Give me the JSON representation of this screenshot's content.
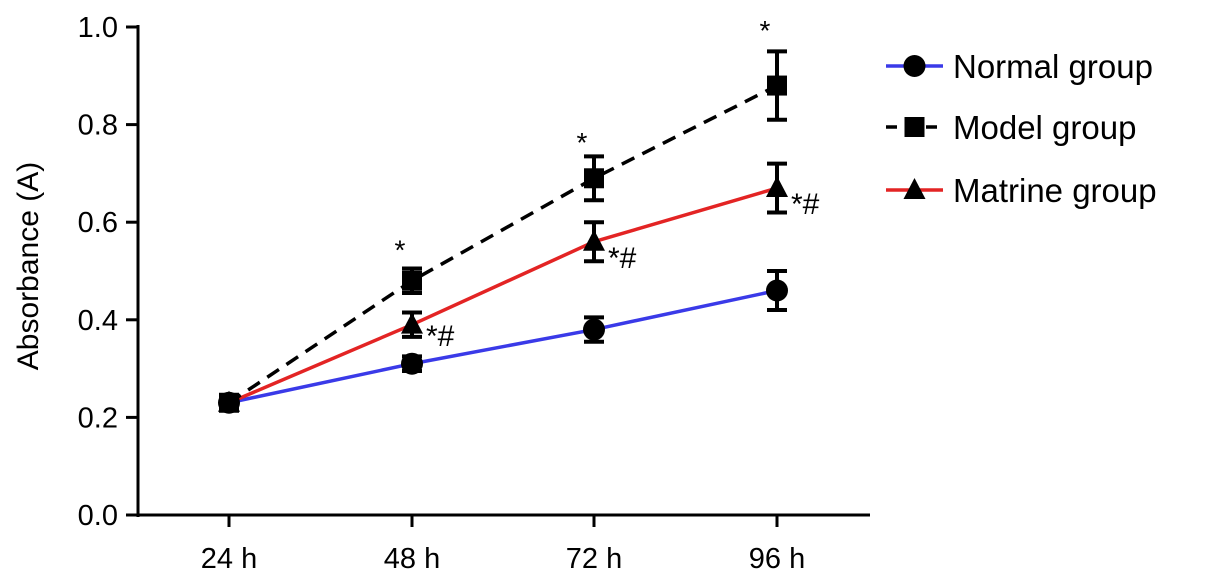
{
  "chart_data": {
    "type": "line",
    "title": "",
    "xlabel": "",
    "ylabel": "Absorbance (A)",
    "categories": [
      "24 h",
      "48 h",
      "72 h",
      "96 h"
    ],
    "ylim": [
      0,
      1.0
    ],
    "yticks": [
      0.0,
      0.2,
      0.4,
      0.6,
      0.8,
      1.0
    ],
    "ytick_labels": [
      "0.0",
      "0.2",
      "0.4",
      "0.6",
      "0.8",
      "1.0"
    ],
    "grid": false,
    "legend_position": "right",
    "series": [
      {
        "name": "Normal group",
        "marker": "circle",
        "line_style": "solid",
        "color": "#3a3ae8",
        "values": [
          0.23,
          0.31,
          0.38,
          0.46
        ],
        "errors": [
          0.015,
          0.015,
          0.025,
          0.04
        ]
      },
      {
        "name": "Model group",
        "marker": "square",
        "line_style": "dashed",
        "color": "#000000",
        "values": [
          0.23,
          0.48,
          0.69,
          0.88
        ],
        "errors": [
          0.015,
          0.025,
          0.045,
          0.07
        ]
      },
      {
        "name": "Matrine group",
        "marker": "triangle",
        "line_style": "solid",
        "color": "#e32424",
        "values": [
          0.23,
          0.39,
          0.56,
          0.67
        ],
        "errors": [
          0.015,
          0.025,
          0.04,
          0.05
        ]
      }
    ],
    "annotations": [
      {
        "category": "48 h",
        "y": 0.54,
        "text": "*"
      },
      {
        "category": "72 h",
        "y": 0.76,
        "text": "*"
      },
      {
        "category": "96 h",
        "y": 0.99,
        "text": "*"
      },
      {
        "category": "48 h",
        "y": 0.375,
        "text": "*#"
      },
      {
        "category": "72 h",
        "y": 0.535,
        "text": "*#"
      },
      {
        "category": "96 h",
        "y": 0.645,
        "text": "*#"
      }
    ]
  }
}
